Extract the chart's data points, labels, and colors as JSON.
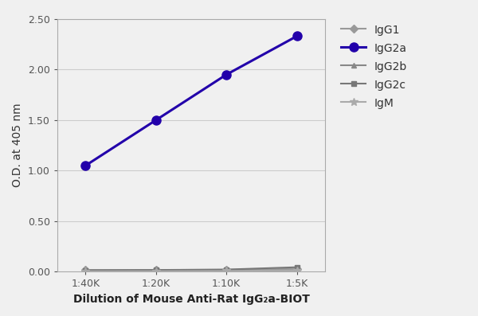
{
  "x_positions": [
    1,
    2,
    3,
    4
  ],
  "x_labels": [
    "1:40K",
    "1:20K",
    "1:10K",
    "1:5K"
  ],
  "series": [
    {
      "label": "IgG1",
      "values": [
        0.018,
        0.018,
        0.02,
        0.028
      ],
      "color": "#999999",
      "marker": "D",
      "markersize": 5,
      "linewidth": 1.5,
      "zorder": 2
    },
    {
      "label": "IgG2a",
      "values": [
        1.05,
        1.5,
        1.95,
        2.33
      ],
      "color": "#2200AA",
      "marker": "o",
      "markersize": 8,
      "linewidth": 2.2,
      "zorder": 3
    },
    {
      "label": "IgG2b",
      "values": [
        0.008,
        0.008,
        0.01,
        0.015
      ],
      "color": "#888888",
      "marker": "^",
      "markersize": 5,
      "linewidth": 1.5,
      "zorder": 2
    },
    {
      "label": "IgG2c",
      "values": [
        0.015,
        0.018,
        0.022,
        0.045
      ],
      "color": "#777777",
      "marker": "s",
      "markersize": 5,
      "linewidth": 1.5,
      "zorder": 2
    },
    {
      "label": "IgM",
      "values": [
        0.005,
        0.006,
        0.008,
        0.015
      ],
      "color": "#aaaaaa",
      "marker": "*",
      "markersize": 7,
      "linewidth": 1.5,
      "zorder": 2
    }
  ],
  "ylabel": "O.D. at 405 nm",
  "xlabel": "Dilution of Mouse Anti-Rat IgG₂a-BIOT",
  "ylim": [
    0.0,
    2.5
  ],
  "yticks": [
    0.0,
    0.5,
    1.0,
    1.5,
    2.0,
    2.5
  ],
  "background_color": "#f0f0f0",
  "plot_bg_color": "#f0f0f0",
  "grid_color": "#cccccc",
  "axis_fontsize": 10,
  "tick_fontsize": 9,
  "legend_fontsize": 10
}
